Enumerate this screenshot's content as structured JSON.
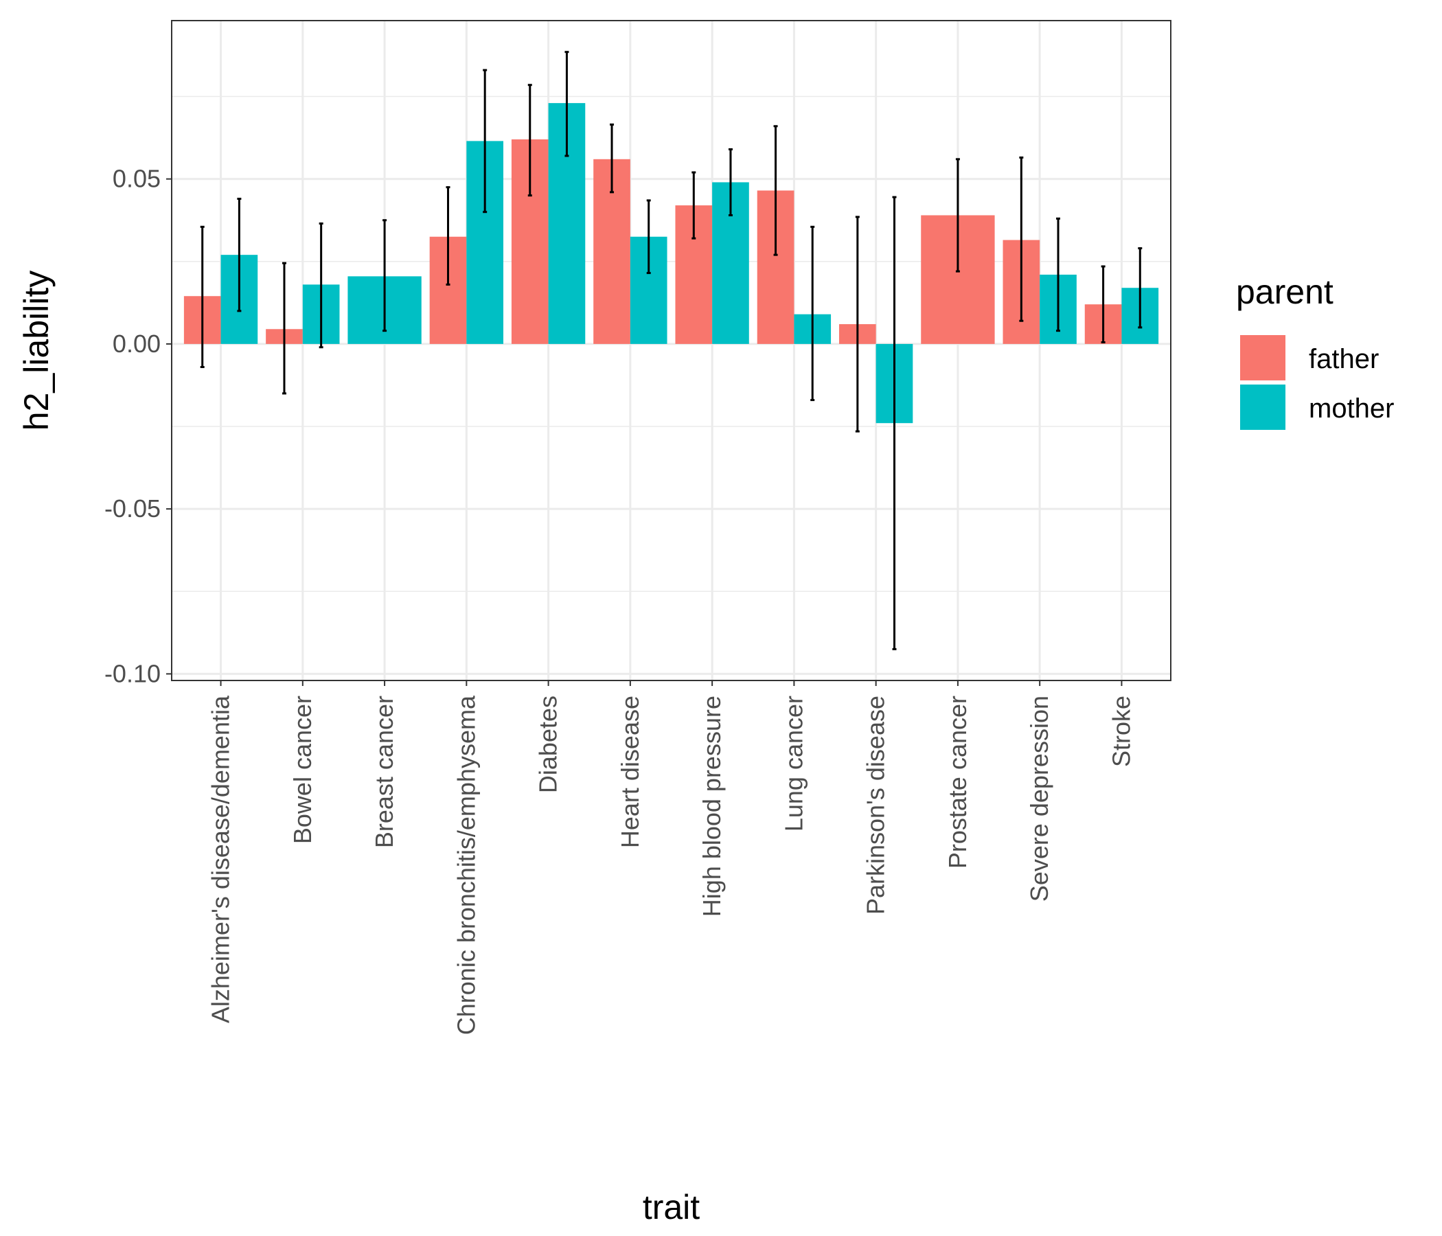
{
  "chart_data": {
    "type": "bar",
    "xlabel": "trait",
    "ylabel": "h2_liability",
    "ylim": [
      -0.102,
      0.098
    ],
    "yticks": [
      -0.1,
      -0.05,
      0.0,
      0.05
    ],
    "ytick_labels": [
      "-0.10",
      "-0.05",
      "0.00",
      "0.05"
    ],
    "grid": true,
    "legend": {
      "title": "parent",
      "position": "right"
    },
    "categories": [
      "Alzheimer's disease/dementia",
      "Bowel cancer",
      "Breast cancer",
      "Chronic bronchitis/emphysema",
      "Diabetes",
      "Heart disease",
      "High blood pressure",
      "Lung cancer",
      "Parkinson's disease",
      "Prostate cancer",
      "Severe depression",
      "Stroke"
    ],
    "series": [
      {
        "name": "father",
        "color": "#F8766D",
        "values": [
          0.0145,
          0.0045,
          null,
          0.0325,
          0.062,
          0.056,
          0.042,
          0.0465,
          0.006,
          0.039,
          0.0315,
          0.012
        ],
        "err_low": [
          -0.007,
          -0.015,
          null,
          0.018,
          0.045,
          0.046,
          0.032,
          0.027,
          -0.0265,
          0.022,
          0.007,
          0.0005
        ],
        "err_high": [
          0.0355,
          0.0245,
          null,
          0.0475,
          0.0785,
          0.0665,
          0.052,
          0.066,
          0.0385,
          0.056,
          0.0565,
          0.0235
        ]
      },
      {
        "name": "mother",
        "color": "#00BFC4",
        "values": [
          0.027,
          0.018,
          0.0205,
          0.0615,
          0.073,
          0.0325,
          0.049,
          0.009,
          -0.024,
          null,
          0.021,
          0.017
        ],
        "err_low": [
          0.01,
          -0.001,
          0.004,
          0.04,
          0.057,
          0.0215,
          0.039,
          -0.017,
          -0.0925,
          null,
          0.004,
          0.005
        ],
        "err_high": [
          0.044,
          0.0365,
          0.0375,
          0.083,
          0.0885,
          0.0435,
          0.059,
          0.0355,
          0.0445,
          null,
          0.038,
          0.029
        ]
      }
    ]
  }
}
